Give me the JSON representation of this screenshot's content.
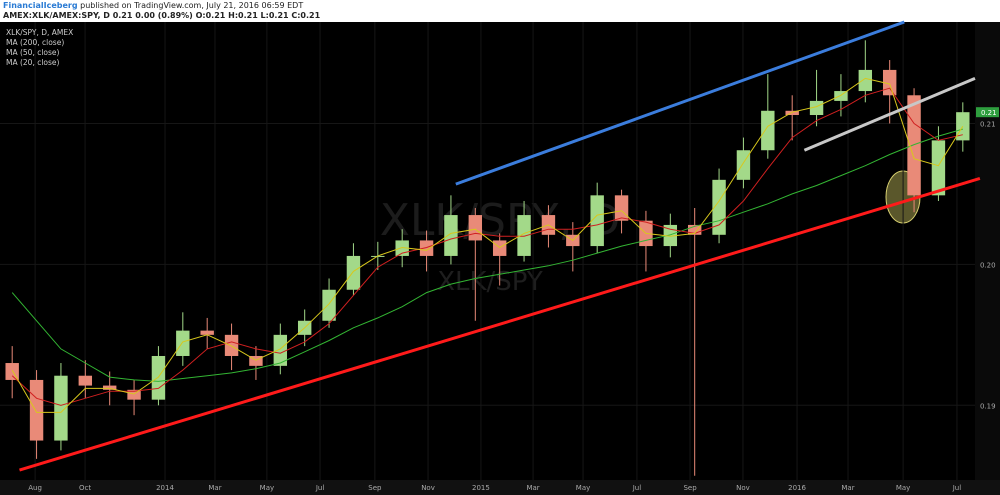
{
  "header": {
    "author": "FinancialIceberg",
    "published": " published on TradingView.com, July 21, 2016 06:59 EDT",
    "symbol_line": "AMEX:XLK/AMEX:SPY, D  0.21  0.00 (0.89%)  O:0.21 H:0.21 L:0.21 C:0.21"
  },
  "chart_data": {
    "type": "candlestick",
    "title": "XLK/SPY, D, AMEX",
    "watermark": "XLK/SPY, D",
    "watermark_sub": "XLK/SPY",
    "x": [
      0,
      1,
      2,
      3,
      4,
      5,
      6,
      7,
      8,
      9,
      10,
      11,
      12,
      13,
      14,
      15,
      16,
      17,
      18,
      19,
      20,
      21,
      22,
      23,
      24,
      25,
      26,
      27,
      28,
      29,
      30,
      31,
      32,
      33,
      34,
      35,
      36,
      37,
      38,
      39
    ],
    "open": [
      0.193,
      0.1918,
      0.1875,
      0.1921,
      0.1914,
      0.1911,
      0.1904,
      0.1935,
      0.1953,
      0.195,
      0.1935,
      0.1928,
      0.195,
      0.196,
      0.1982,
      0.2006,
      0.2006,
      0.2017,
      0.2006,
      0.2035,
      0.2017,
      0.2006,
      0.2035,
      0.2021,
      0.2013,
      0.2049,
      0.2031,
      0.2013,
      0.2028,
      0.2021,
      0.206,
      0.2081,
      0.2109,
      0.2106,
      0.2116,
      0.2123,
      0.2138,
      0.212,
      0.2049,
      0.2088
    ],
    "high": [
      0.1942,
      0.1925,
      0.193,
      0.1932,
      0.1924,
      0.1918,
      0.1942,
      0.1966,
      0.1962,
      0.1958,
      0.1942,
      0.1958,
      0.1968,
      0.199,
      0.2015,
      0.2016,
      0.2025,
      0.2024,
      0.2049,
      0.204,
      0.2022,
      0.2045,
      0.2042,
      0.203,
      0.2058,
      0.2053,
      0.2038,
      0.2036,
      0.204,
      0.2068,
      0.209,
      0.2135,
      0.212,
      0.2138,
      0.2135,
      0.2159,
      0.2145,
      0.2125,
      0.2098,
      0.2115
    ],
    "low": [
      0.1905,
      0.1862,
      0.1868,
      0.1905,
      0.19,
      0.1893,
      0.19,
      0.1928,
      0.194,
      0.1925,
      0.1918,
      0.1922,
      0.1942,
      0.1955,
      0.1978,
      0.1996,
      0.1998,
      0.1995,
      0.2,
      0.196,
      0.1985,
      0.2002,
      0.2012,
      0.1995,
      0.2008,
      0.2022,
      0.1995,
      0.2005,
      0.185,
      0.2015,
      0.2054,
      0.2075,
      0.2088,
      0.2098,
      0.2105,
      0.2115,
      0.21,
      0.2037,
      0.2045,
      0.208
    ],
    "close": [
      0.1918,
      0.1875,
      0.1921,
      0.1914,
      0.1911,
      0.1904,
      0.1935,
      0.1953,
      0.195,
      0.1935,
      0.1928,
      0.195,
      0.196,
      0.1982,
      0.2006,
      0.2006,
      0.2017,
      0.2006,
      0.2035,
      0.2017,
      0.2006,
      0.2035,
      0.2021,
      0.2013,
      0.2049,
      0.2031,
      0.2013,
      0.2028,
      0.2021,
      0.206,
      0.2081,
      0.2109,
      0.2106,
      0.2116,
      0.2123,
      0.2138,
      0.212,
      0.2049,
      0.2088,
      0.2108
    ],
    "up_color": "#a3d989",
    "down_color": "#e98a78",
    "series": [
      {
        "name": "MA (200, close)",
        "color": "#33b533",
        "values": [
          0.198,
          0.196,
          0.194,
          0.193,
          0.192,
          0.1918,
          0.1917,
          0.1919,
          0.1921,
          0.1923,
          0.1926,
          0.193,
          0.1938,
          0.1946,
          0.1955,
          0.1962,
          0.197,
          0.198,
          0.1986,
          0.199,
          0.1993,
          0.1996,
          0.1999,
          0.2003,
          0.2008,
          0.2013,
          0.2017,
          0.2021,
          0.2027,
          0.2031,
          0.2037,
          0.2043,
          0.205,
          0.2056,
          0.2063,
          0.207,
          0.2078,
          0.2085,
          0.2091,
          0.2096
        ]
      },
      {
        "name": "MA (50, close)",
        "color": "#d02020",
        "values": [
          0.1921,
          0.1905,
          0.19,
          0.1905,
          0.191,
          0.191,
          0.1912,
          0.1925,
          0.194,
          0.1945,
          0.194,
          0.1937,
          0.1945,
          0.1958,
          0.1978,
          0.1998,
          0.2008,
          0.2012,
          0.2018,
          0.2022,
          0.202,
          0.202,
          0.2025,
          0.2025,
          0.2028,
          0.2033,
          0.203,
          0.2025,
          0.2022,
          0.2028,
          0.2045,
          0.2068,
          0.209,
          0.2102,
          0.211,
          0.212,
          0.2125,
          0.21,
          0.2088,
          0.2092
        ]
      },
      {
        "name": "MA (20, close)",
        "color": "#d8c81c",
        "values": [
          0.1925,
          0.1895,
          0.1895,
          0.1912,
          0.1912,
          0.1908,
          0.192,
          0.1945,
          0.195,
          0.1942,
          0.1932,
          0.194,
          0.1955,
          0.1972,
          0.1995,
          0.2006,
          0.2012,
          0.201,
          0.2022,
          0.2025,
          0.2012,
          0.2022,
          0.2028,
          0.2017,
          0.2035,
          0.2038,
          0.2022,
          0.202,
          0.2022,
          0.2045,
          0.2072,
          0.2098,
          0.2108,
          0.2112,
          0.212,
          0.2132,
          0.2128,
          0.2075,
          0.207,
          0.2098
        ]
      }
    ],
    "trendlines": [
      {
        "color": "#3b7ddd",
        "x": [
          18.2,
          36.6
        ],
        "y": [
          0.2057,
          0.2172
        ]
      },
      {
        "color": "#ff1a1a",
        "x": [
          0.3,
          39.7
        ],
        "y": [
          0.1854,
          0.2061
        ]
      },
      {
        "color": "#c8c8c8",
        "x": [
          32.5,
          39.5
        ],
        "y": [
          0.2081,
          0.2132
        ]
      }
    ],
    "last_price": {
      "value": 0.2108,
      "label": "0.21"
    },
    "last_price_color": "#2e9e3e",
    "xlim": [
      -0.5,
      39.5
    ],
    "xticks": [
      {
        "value": 0.94,
        "label": "Aug"
      },
      {
        "value": 2.99,
        "label": "Oct"
      },
      {
        "value": 6.27,
        "label": "2014"
      },
      {
        "value": 8.32,
        "label": "Mar"
      },
      {
        "value": 10.45,
        "label": "May"
      },
      {
        "value": 12.63,
        "label": "Jul"
      },
      {
        "value": 14.88,
        "label": "Sep"
      },
      {
        "value": 17.06,
        "label": "Nov"
      },
      {
        "value": 19.23,
        "label": "2015"
      },
      {
        "value": 21.37,
        "label": "Mar"
      },
      {
        "value": 23.42,
        "label": "May"
      },
      {
        "value": 25.63,
        "label": "Jul"
      },
      {
        "value": 27.81,
        "label": "Sep"
      },
      {
        "value": 29.98,
        "label": "Nov"
      },
      {
        "value": 32.2,
        "label": "2016"
      },
      {
        "value": 34.29,
        "label": "Mar"
      },
      {
        "value": 36.55,
        "label": "May"
      },
      {
        "value": 38.76,
        "label": "Jul"
      }
    ],
    "ylim": [
      0.1847,
      0.2172
    ],
    "yticks": [
      0.19,
      {
        "value": 0.2,
        "label": "0.20"
      },
      0.21
    ],
    "grid": true
  }
}
